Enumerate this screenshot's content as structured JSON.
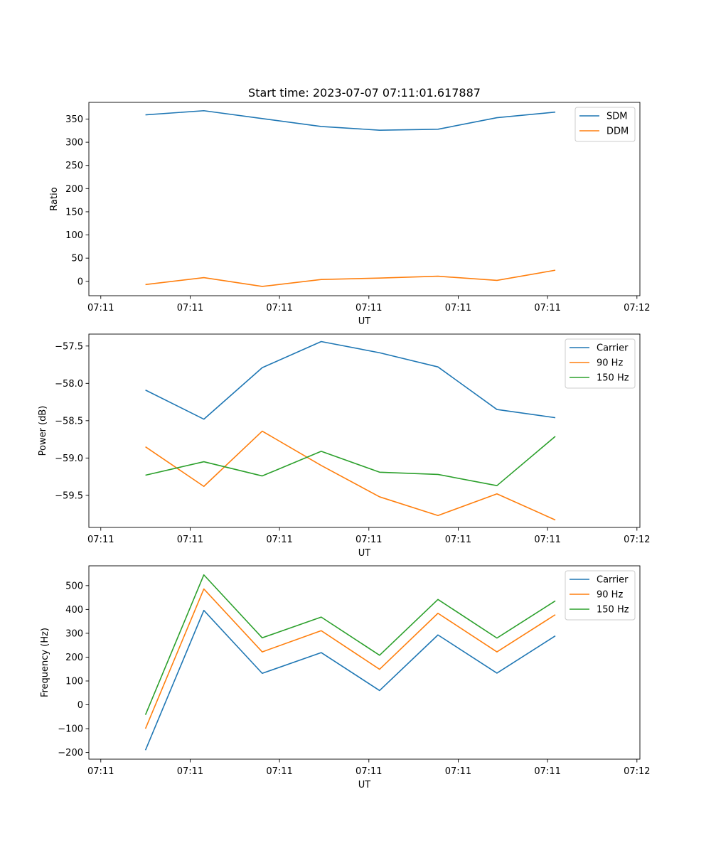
{
  "figure_title": "Start time: 2023-07-07 07:11:01.617887",
  "colors": {
    "blue": "#1f77b4",
    "orange": "#ff7f0e",
    "green": "#2ca02c"
  },
  "chart_data": [
    {
      "type": "line",
      "title": "Start time: 2023-07-07 07:11:01.617887",
      "xlabel": "UT",
      "ylabel": "Ratio",
      "xlim": [
        -0.2,
        9.05
      ],
      "ylim": [
        -31,
        386
      ],
      "x_tick_positions": [
        0,
        1.5,
        3,
        4.5,
        6,
        7.5,
        9
      ],
      "x_tick_labels": [
        "07:11",
        "07:11",
        "07:11",
        "07:11",
        "07:11",
        "07:11",
        "07:12"
      ],
      "y_ticks": [
        0,
        50,
        100,
        150,
        200,
        250,
        300,
        350
      ],
      "y_tick_labels": [
        "0",
        "50",
        "100",
        "150",
        "200",
        "250",
        "300",
        "350"
      ],
      "x": [
        0.75,
        1.73,
        2.71,
        3.7,
        4.68,
        5.66,
        6.65,
        7.63
      ],
      "legend_location": "top-right",
      "series": [
        {
          "name": "SDM",
          "color": "#1f77b4",
          "values": [
            359,
            368,
            351,
            334,
            326,
            328,
            353,
            365
          ]
        },
        {
          "name": "DDM",
          "color": "#ff7f0e",
          "values": [
            -7,
            8,
            -11,
            4,
            7,
            11,
            2,
            24
          ]
        }
      ]
    },
    {
      "type": "line",
      "title": "",
      "xlabel": "UT",
      "ylabel": "Power (dB)",
      "xlim": [
        -0.2,
        9.05
      ],
      "ylim": [
        -59.93,
        -57.34
      ],
      "x_tick_positions": [
        0,
        1.5,
        3,
        4.5,
        6,
        7.5,
        9
      ],
      "x_tick_labels": [
        "07:11",
        "07:11",
        "07:11",
        "07:11",
        "07:11",
        "07:11",
        "07:12"
      ],
      "y_ticks": [
        -59.5,
        -59.0,
        -58.5,
        -58.0,
        -57.5
      ],
      "y_tick_labels": [
        "−59.5",
        "−59.0",
        "−58.5",
        "−58.0",
        "−57.5"
      ],
      "x": [
        0.75,
        1.73,
        2.71,
        3.7,
        4.68,
        5.66,
        6.65,
        7.63
      ],
      "legend_location": "top-right",
      "series": [
        {
          "name": "Carrier",
          "color": "#1f77b4",
          "values": [
            -58.09,
            -58.48,
            -57.79,
            -57.44,
            -57.59,
            -57.78,
            -58.35,
            -58.46
          ]
        },
        {
          "name": "90 Hz",
          "color": "#ff7f0e",
          "values": [
            -58.85,
            -59.38,
            -58.64,
            -59.1,
            -59.52,
            -59.77,
            -59.48,
            -59.83
          ]
        },
        {
          "name": "150 Hz",
          "color": "#2ca02c",
          "values": [
            -59.23,
            -59.05,
            -59.24,
            -58.91,
            -59.19,
            -59.22,
            -59.37,
            -58.71
          ]
        }
      ]
    },
    {
      "type": "line",
      "title": "",
      "xlabel": "UT",
      "ylabel": "Frequency (Hz)",
      "xlim": [
        -0.2,
        9.05
      ],
      "ylim": [
        -228,
        583
      ],
      "x_tick_positions": [
        0,
        1.5,
        3,
        4.5,
        6,
        7.5,
        9
      ],
      "x_tick_labels": [
        "07:11",
        "07:11",
        "07:11",
        "07:11",
        "07:11",
        "07:11",
        "07:12"
      ],
      "y_ticks": [
        -200,
        -100,
        0,
        100,
        200,
        300,
        400,
        500
      ],
      "y_tick_labels": [
        "−200",
        "−100",
        "0",
        "100",
        "200",
        "300",
        "400",
        "500"
      ],
      "x": [
        0.75,
        1.73,
        2.71,
        3.7,
        4.68,
        5.66,
        6.65,
        7.63
      ],
      "legend_location": "top-right",
      "series": [
        {
          "name": "Carrier",
          "color": "#1f77b4",
          "values": [
            -190,
            396,
            132,
            219,
            60,
            293,
            133,
            289
          ]
        },
        {
          "name": "90 Hz",
          "color": "#ff7f0e",
          "values": [
            -100,
            486,
            222,
            311,
            149,
            384,
            222,
            378
          ]
        },
        {
          "name": "150 Hz",
          "color": "#2ca02c",
          "values": [
            -42,
            545,
            281,
            368,
            208,
            442,
            280,
            436
          ]
        }
      ]
    }
  ]
}
